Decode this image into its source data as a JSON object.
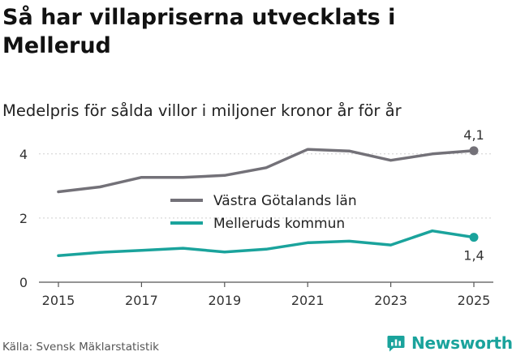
{
  "title": "Så har villapriserna utvecklats i Mellerud",
  "subtitle": "Medelpris för sålda villor i miljoner kronor år för år",
  "source": "Källa: Svensk Mäklarstatistik",
  "brand": "Newsworthy",
  "colors": {
    "series_region": "#737178",
    "series_municipality": "#1aa39c",
    "grid": "#cfcfcf",
    "axis": "#555555",
    "brand": "#1aa39c"
  },
  "chart_data": {
    "type": "line",
    "title": "Så har villapriserna utvecklats i Mellerud",
    "subtitle": "Medelpris för sålda villor i miljoner kronor år för år",
    "xlabel": "",
    "ylabel": "",
    "x": [
      2015,
      2016,
      2017,
      2018,
      2019,
      2020,
      2021,
      2022,
      2023,
      2024,
      2025
    ],
    "xticks": [
      2015,
      2017,
      2019,
      2021,
      2023,
      2025
    ],
    "xtick_labels": [
      "2015",
      "2017",
      "2019",
      "2021",
      "2023",
      "2025"
    ],
    "yticks": [
      0,
      2,
      4
    ],
    "ytick_labels": [
      "0",
      "2",
      "4"
    ],
    "xlim": [
      2015,
      2025
    ],
    "ylim": [
      0,
      4.5
    ],
    "grid": true,
    "legend_position": "center",
    "series": [
      {
        "name": "Västra Götalands län",
        "color": "#737178",
        "values": [
          2.82,
          2.97,
          3.27,
          3.27,
          3.33,
          3.57,
          4.14,
          4.09,
          3.8,
          4.0,
          4.1
        ],
        "end_label": "4,1"
      },
      {
        "name": "Melleruds kommun",
        "color": "#1aa39c",
        "values": [
          0.83,
          0.93,
          0.99,
          1.06,
          0.94,
          1.03,
          1.23,
          1.28,
          1.16,
          1.6,
          1.4
        ],
        "end_label": "1,4"
      }
    ]
  }
}
